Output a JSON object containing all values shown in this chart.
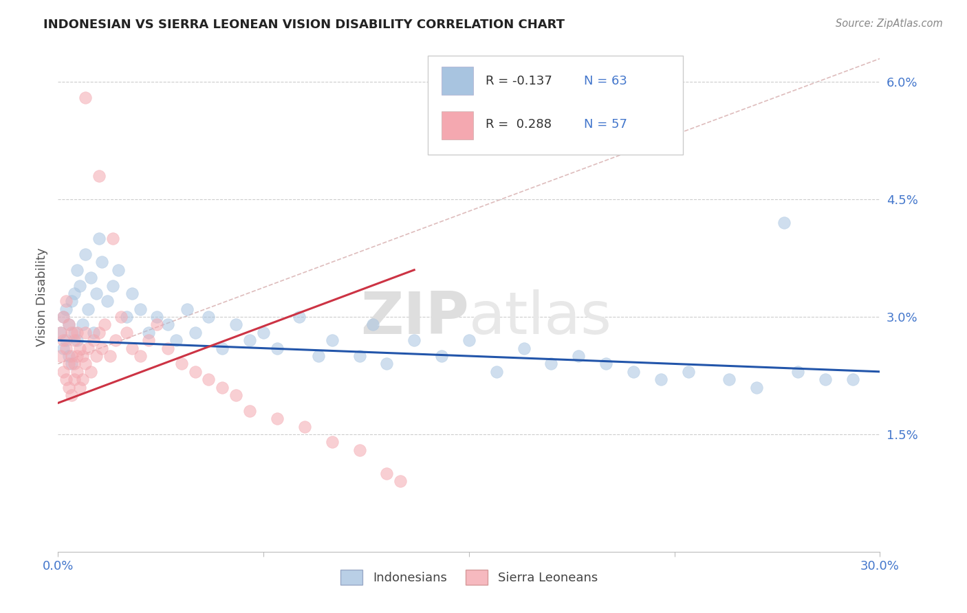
{
  "title": "INDONESIAN VS SIERRA LEONEAN VISION DISABILITY CORRELATION CHART",
  "source": "Source: ZipAtlas.com",
  "ylabel": "Vision Disability",
  "xlim": [
    0.0,
    0.3
  ],
  "ylim": [
    0.0,
    0.065
  ],
  "ytick_vals": [
    0.015,
    0.03,
    0.045,
    0.06
  ],
  "ytick_labels": [
    "1.5%",
    "3.0%",
    "4.5%",
    "6.0%"
  ],
  "xtick_vals": [
    0.0,
    0.075,
    0.15,
    0.225,
    0.3
  ],
  "xtick_labels": [
    "0.0%",
    "",
    "",
    "",
    "30.0%"
  ],
  "r1": -0.137,
  "r2": 0.288,
  "n1": 63,
  "n2": 57,
  "color_blue": "#A8C4E0",
  "color_pink": "#F4A8B0",
  "color_line_blue": "#2255AA",
  "color_line_pink": "#CC3344",
  "color_diag": "#E8B0B0",
  "color_axis_label": "#4477CC",
  "legend_box_color": "#DDDDDD"
}
